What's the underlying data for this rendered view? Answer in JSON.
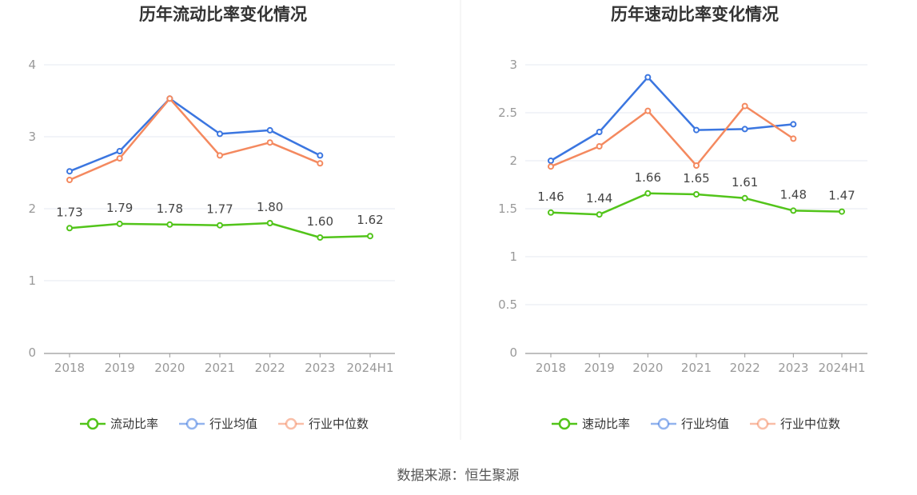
{
  "chart_data": [
    {
      "type": "line",
      "title": "历年流动比率变化情况",
      "categories": [
        "2018",
        "2019",
        "2020",
        "2021",
        "2022",
        "2023",
        "2024H1"
      ],
      "ylim": [
        0,
        4
      ],
      "yticks": [
        "0",
        "1",
        "2",
        "3",
        "4"
      ],
      "grid": true,
      "legend_position": "bottom",
      "series": [
        {
          "name": "流动比率",
          "color": "#52c41a",
          "values": [
            1.73,
            1.79,
            1.78,
            1.77,
            1.8,
            1.6,
            1.62
          ],
          "labels": [
            "1.73",
            "1.79",
            "1.78",
            "1.77",
            "1.80",
            "1.60",
            "1.62"
          ]
        },
        {
          "name": "行业均值",
          "color": "#3b76e0",
          "values": [
            2.52,
            2.8,
            3.53,
            3.04,
            3.09,
            2.74,
            null
          ]
        },
        {
          "name": "行业中位数",
          "color": "#f4895f",
          "values": [
            2.4,
            2.7,
            3.53,
            2.74,
            2.92,
            2.63,
            null
          ]
        }
      ]
    },
    {
      "type": "line",
      "title": "历年速动比率变化情况",
      "categories": [
        "2018",
        "2019",
        "2020",
        "2021",
        "2022",
        "2023",
        "2024H1"
      ],
      "ylim": [
        0,
        3
      ],
      "yticks": [
        "0",
        "0.5",
        "1",
        "1.5",
        "2",
        "2.5",
        "3"
      ],
      "grid": true,
      "legend_position": "bottom",
      "series": [
        {
          "name": "速动比率",
          "color": "#52c41a",
          "values": [
            1.46,
            1.44,
            1.66,
            1.65,
            1.61,
            1.48,
            1.47
          ],
          "labels": [
            "1.46",
            "1.44",
            "1.66",
            "1.65",
            "1.61",
            "1.48",
            "1.47"
          ]
        },
        {
          "name": "行业均值",
          "color": "#3b76e0",
          "values": [
            2.0,
            2.3,
            2.87,
            2.32,
            2.33,
            2.38,
            null
          ]
        },
        {
          "name": "行业中位数",
          "color": "#f4895f",
          "values": [
            1.94,
            2.15,
            2.52,
            1.95,
            2.57,
            2.23,
            null
          ]
        }
      ]
    }
  ],
  "footer": {
    "source": "数据来源：恒生聚源"
  }
}
